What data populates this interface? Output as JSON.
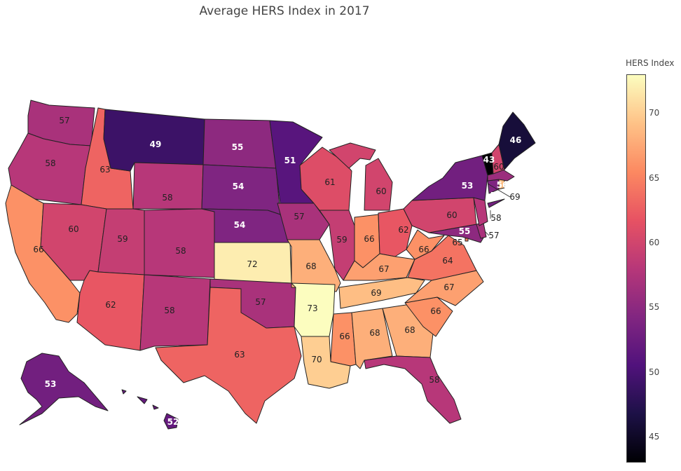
{
  "title": "Average HERS Index in 2017",
  "colorbar": {
    "title": "HERS Index",
    "min": 43,
    "max": 73,
    "ticks": [
      "45",
      "50",
      "55",
      "60",
      "65",
      "70"
    ],
    "colors": [
      "#000004",
      "#1d1147",
      "#51127c",
      "#822681",
      "#b73779",
      "#e75263",
      "#fc8961",
      "#fec287",
      "#fcfdbf"
    ]
  },
  "chart_data": {
    "type": "choropleth",
    "title": "Average HERS Index in 2017",
    "colorbar_title": "HERS Index",
    "colorscale": "magma",
    "range": [
      43,
      73
    ],
    "states": [
      {
        "state": "WA",
        "value": 57
      },
      {
        "state": "OR",
        "value": 58
      },
      {
        "state": "CA",
        "value": 66
      },
      {
        "state": "ID",
        "value": 63
      },
      {
        "state": "NV",
        "value": 60
      },
      {
        "state": "MT",
        "value": 49
      },
      {
        "state": "WY",
        "value": 58
      },
      {
        "state": "UT",
        "value": 59
      },
      {
        "state": "AZ",
        "value": 62
      },
      {
        "state": "CO",
        "value": 58
      },
      {
        "state": "NM",
        "value": 58
      },
      {
        "state": "ND",
        "value": 55
      },
      {
        "state": "SD",
        "value": 54
      },
      {
        "state": "NE",
        "value": 54
      },
      {
        "state": "KS",
        "value": 72
      },
      {
        "state": "OK",
        "value": 57
      },
      {
        "state": "TX",
        "value": 63
      },
      {
        "state": "MN",
        "value": 51
      },
      {
        "state": "IA",
        "value": 57
      },
      {
        "state": "MO",
        "value": 68
      },
      {
        "state": "AR",
        "value": 73
      },
      {
        "state": "LA",
        "value": 70
      },
      {
        "state": "WI",
        "value": 61
      },
      {
        "state": "IL",
        "value": 59
      },
      {
        "state": "MI",
        "value": 60
      },
      {
        "state": "IN",
        "value": 66
      },
      {
        "state": "OH",
        "value": 62
      },
      {
        "state": "KY",
        "value": 67
      },
      {
        "state": "TN",
        "value": 69
      },
      {
        "state": "MS",
        "value": 66
      },
      {
        "state": "AL",
        "value": 68
      },
      {
        "state": "GA",
        "value": 68
      },
      {
        "state": "FL",
        "value": 58
      },
      {
        "state": "SC",
        "value": 66
      },
      {
        "state": "NC",
        "value": 67
      },
      {
        "state": "VA",
        "value": 64
      },
      {
        "state": "WV",
        "value": 66
      },
      {
        "state": "MD",
        "value": 55
      },
      {
        "state": "DE",
        "value": 57
      },
      {
        "state": "NJ",
        "value": 58
      },
      {
        "state": "PA",
        "value": 60
      },
      {
        "state": "NY",
        "value": 53
      },
      {
        "state": "CT",
        "value": 54
      },
      {
        "state": "RI",
        "value": 69
      },
      {
        "state": "MA",
        "value": 56
      },
      {
        "state": "VT",
        "value": 43
      },
      {
        "state": "NH",
        "value": 60
      },
      {
        "state": "ME",
        "value": 46
      },
      {
        "state": "AK",
        "value": 53
      },
      {
        "state": "HI",
        "value": 52
      },
      {
        "state": "DC",
        "value": 65
      }
    ]
  }
}
